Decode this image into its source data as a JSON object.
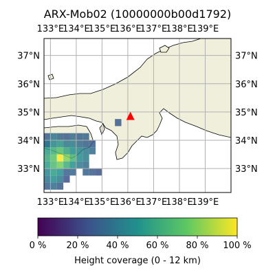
{
  "chart_data": {
    "type": "heatmap",
    "title": "ARX-Mob02 (10000000b00d1792)",
    "x_ticks": [
      "133°E",
      "134°E",
      "135°E",
      "136°E",
      "137°E",
      "138°E",
      "139°E"
    ],
    "y_ticks": [
      "33°N",
      "34°N",
      "35°N",
      "36°N",
      "37°N"
    ],
    "xlim": [
      132.75,
      140.0
    ],
    "ylim": [
      32.15,
      37.6
    ],
    "grid": true,
    "colorbar": {
      "label": "Height coverage (0 - 12 km)",
      "ticks": [
        "0 %",
        "20 %",
        "40 %",
        "60 %",
        "80 %",
        "100 %"
      ],
      "range": [
        0,
        100
      ],
      "colormap": [
        "#440154",
        "#3b528b",
        "#21918c",
        "#5ec962",
        "#fde725"
      ]
    },
    "marker": {
      "lon": 136.1,
      "lat": 34.84,
      "shape": "triangle",
      "color": "#ff0000"
    },
    "cell_size_deg": 0.25,
    "cells": [
      {
        "lon": 132.75,
        "lat": 33.75,
        "value": 38
      },
      {
        "lon": 133.0,
        "lat": 33.75,
        "value": 45
      },
      {
        "lon": 133.25,
        "lat": 33.75,
        "value": 52
      },
      {
        "lon": 133.5,
        "lat": 33.75,
        "value": 40
      },
      {
        "lon": 133.75,
        "lat": 33.75,
        "value": 42
      },
      {
        "lon": 134.0,
        "lat": 33.75,
        "value": 35
      },
      {
        "lon": 134.25,
        "lat": 33.75,
        "value": 30
      },
      {
        "lon": 134.5,
        "lat": 33.75,
        "value": 28
      },
      {
        "lon": 132.75,
        "lat": 33.5,
        "value": 55
      },
      {
        "lon": 133.0,
        "lat": 33.5,
        "value": 62
      },
      {
        "lon": 133.25,
        "lat": 33.5,
        "value": 70
      },
      {
        "lon": 133.5,
        "lat": 33.5,
        "value": 58
      },
      {
        "lon": 133.75,
        "lat": 33.5,
        "value": 50
      },
      {
        "lon": 134.0,
        "lat": 33.5,
        "value": 45
      },
      {
        "lon": 134.25,
        "lat": 33.5,
        "value": 40
      },
      {
        "lon": 134.5,
        "lat": 33.5,
        "value": 35
      },
      {
        "lon": 132.75,
        "lat": 33.25,
        "value": 60
      },
      {
        "lon": 133.0,
        "lat": 33.25,
        "value": 72
      },
      {
        "lon": 133.25,
        "lat": 33.25,
        "value": 100
      },
      {
        "lon": 133.5,
        "lat": 33.25,
        "value": 80
      },
      {
        "lon": 133.75,
        "lat": 33.25,
        "value": 65
      },
      {
        "lon": 134.0,
        "lat": 33.25,
        "value": 48
      },
      {
        "lon": 134.25,
        "lat": 33.25,
        "value": 42
      },
      {
        "lon": 132.75,
        "lat": 33.0,
        "value": 55
      },
      {
        "lon": 133.0,
        "lat": 33.0,
        "value": 68
      },
      {
        "lon": 133.25,
        "lat": 33.0,
        "value": 78
      },
      {
        "lon": 133.5,
        "lat": 33.0,
        "value": 62
      },
      {
        "lon": 133.75,
        "lat": 33.0,
        "value": 50
      },
      {
        "lon": 134.0,
        "lat": 33.0,
        "value": 40
      },
      {
        "lon": 134.25,
        "lat": 33.0,
        "value": 35
      },
      {
        "lon": 132.75,
        "lat": 32.75,
        "value": 45
      },
      {
        "lon": 133.0,
        "lat": 32.75,
        "value": 55
      },
      {
        "lon": 133.25,
        "lat": 32.75,
        "value": 50
      },
      {
        "lon": 133.5,
        "lat": 32.75,
        "value": 30
      },
      {
        "lon": 133.75,
        "lat": 32.75,
        "value": 32
      },
      {
        "lon": 134.25,
        "lat": 32.75,
        "value": 30
      },
      {
        "lon": 134.5,
        "lat": 32.75,
        "value": 28
      },
      {
        "lon": 134.75,
        "lat": 32.75,
        "value": 25
      },
      {
        "lon": 132.75,
        "lat": 32.5,
        "value": 38
      },
      {
        "lon": 133.0,
        "lat": 32.5,
        "value": 48
      },
      {
        "lon": 133.25,
        "lat": 32.5,
        "value": 40
      },
      {
        "lon": 133.5,
        "lat": 32.5,
        "value": 25
      },
      {
        "lon": 132.75,
        "lat": 32.25,
        "value": 30
      },
      {
        "lon": 133.0,
        "lat": 32.25,
        "value": 35
      },
      {
        "lon": 133.25,
        "lat": 32.25,
        "value": 28
      },
      {
        "lon": 132.75,
        "lat": 34.0,
        "value": 30
      },
      {
        "lon": 133.0,
        "lat": 34.0,
        "value": 38
      },
      {
        "lon": 133.25,
        "lat": 34.0,
        "value": 32
      },
      {
        "lon": 133.5,
        "lat": 34.0,
        "value": 28
      },
      {
        "lon": 133.75,
        "lat": 34.0,
        "value": 35
      },
      {
        "lon": 134.0,
        "lat": 34.0,
        "value": 30
      },
      {
        "lon": 134.25,
        "lat": 34.0,
        "value": 32
      },
      {
        "lon": 132.75,
        "lat": 33.75,
        "value": 38
      },
      {
        "lon": 135.5,
        "lat": 34.5,
        "value": 28
      }
    ]
  }
}
